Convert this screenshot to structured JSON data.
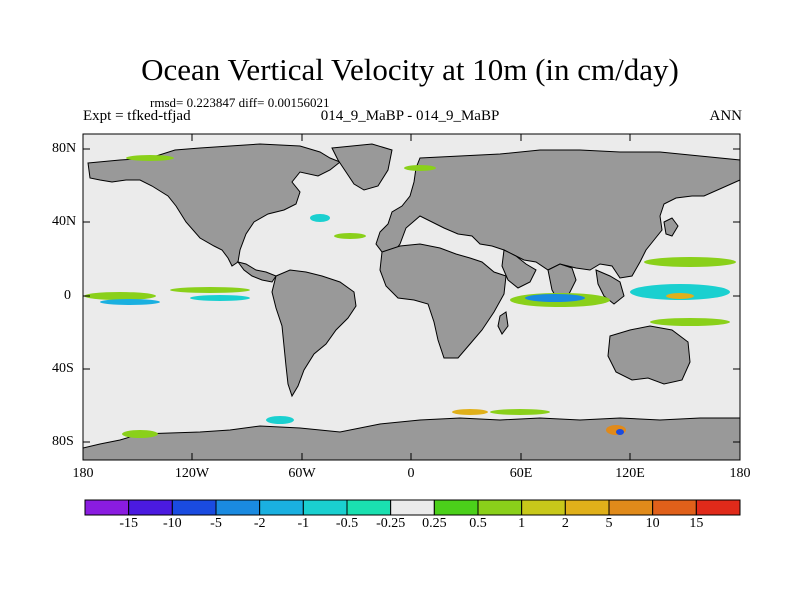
{
  "title": "Ocean Vertical Velocity at 10m (in cm/day)",
  "stats": "rmsd= 0.223847 diff= 0.00156021",
  "subtitle_left": "Expt = tfked-tfjad",
  "subtitle_center": "014_9_MaBP - 014_9_MaBP",
  "subtitle_right": "ANN",
  "lat_labels": [
    "80N",
    "40N",
    "0",
    "40S",
    "80S"
  ],
  "lon_labels": [
    "180",
    "120W",
    "60W",
    "0",
    "60E",
    "120E",
    "180"
  ],
  "colorbar": {
    "labels": [
      "-15",
      "-10",
      "-5",
      "-2",
      "-1",
      "-0.5",
      "-0.25",
      "0.25",
      "0.5",
      "1",
      "2",
      "5",
      "10",
      "15"
    ],
    "colors": [
      "#8a1ce0",
      "#4b1ae0",
      "#1a4be0",
      "#1a8ae0",
      "#1ab0e0",
      "#1ad0d0",
      "#1ae0b0",
      "#ebebeb",
      "#4bd01a",
      "#8ad01a",
      "#c8c81a",
      "#e0b01a",
      "#e08a1a",
      "#e0601a",
      "#e02a1a"
    ]
  },
  "colors": {
    "land": "#999999",
    "ocean": "#ebebeb"
  }
}
